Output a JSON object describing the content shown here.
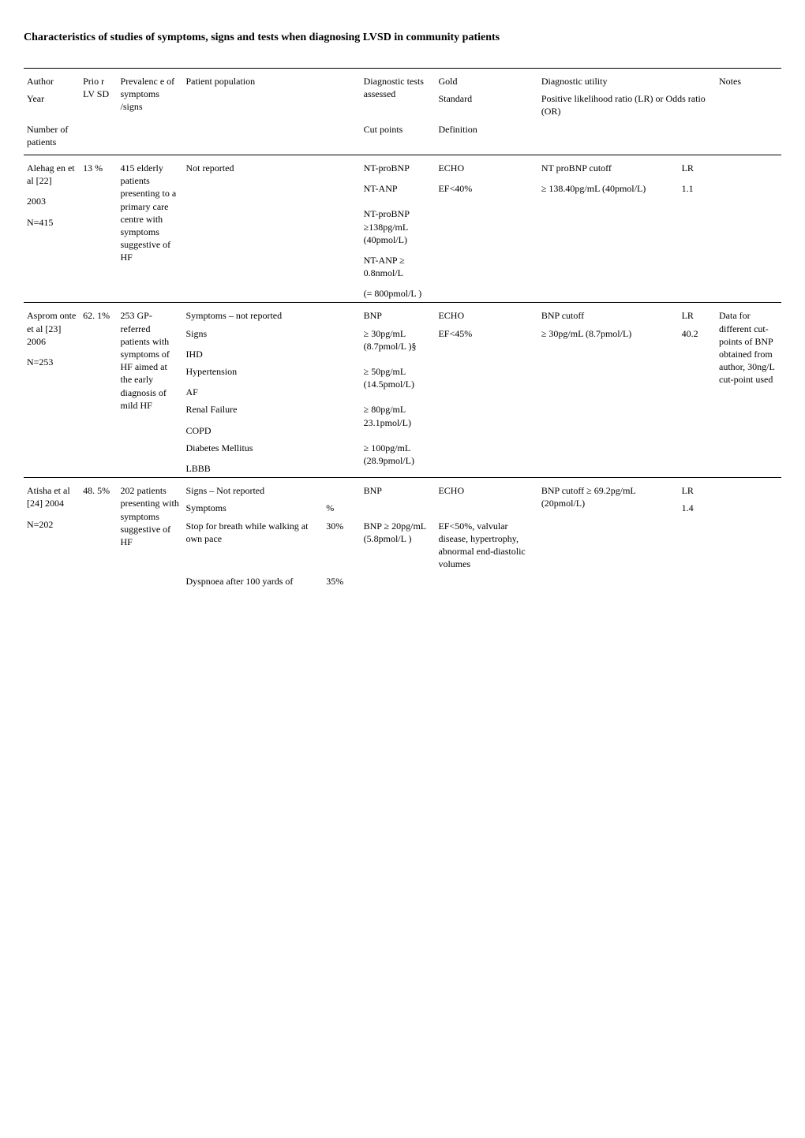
{
  "title": "Characteristics of studies of symptoms, signs and tests when diagnosing LVSD in community patients",
  "header": {
    "author": "Author",
    "year": "Year",
    "number": "Number of patients",
    "prior": "Prio r LV SD",
    "prevalence": "Prevalenc e of symptoms /signs",
    "patient_population": "Patient population",
    "diagnostic_tests": "Diagnostic tests assessed",
    "cut_points": "Cut points",
    "gold": "Gold",
    "standard": "Standard",
    "definition": "Definition",
    "diagnostic_utility": "Diagnostic utility",
    "plr": "Positive likelihood ratio (LR) or Odds ratio (OR)",
    "notes": "Notes"
  },
  "study1": {
    "author": "Alehag en et al [22]",
    "year": "2003",
    "n": "N=415",
    "prior": "13 %",
    "prev1": "415 elderly patients presenting to a primary care centre with symptoms suggestive of HF",
    "pop": "Not reported",
    "diag1": "NT-proBNP",
    "diag2": "NT-ANP",
    "diag3": "NT-proBNP ≥138pg/mL (40pmol/L)",
    "diag4": "NT-ANP ≥ 0.8nmol/L",
    "diag5": "(= 800pmol/L )",
    "gold1": "ECHO",
    "gold2": "EF<40%",
    "util1": "NT proBNP cutoff",
    "util2": "≥ 138.40pg/mL (40pmol/L)",
    "lr1": "LR",
    "lr2": "1.1"
  },
  "study2": {
    "author": "Asprom onte et al [23] 2006",
    "n": "N=253",
    "prior": "62. 1%",
    "prev1": "253 GP-referred patients with symptoms of HF aimed at the early diagnosis of mild HF",
    "pop1": "Symptoms – not reported",
    "pop2": "Signs",
    "pop3": "IHD",
    "pop4": "Hypertension",
    "pop5": "AF",
    "pop6": "Renal Failure",
    "pop7": "COPD",
    "pop8": "Diabetes Mellitus",
    "pop9": "LBBB",
    "diag1": "BNP",
    "diag2": "≥ 30pg/mL (8.7pmol/L )§",
    "diag3": "≥ 50pg/mL (14.5pmol/L)",
    "diag4": "≥ 80pg/mL 23.1pmol/L)",
    "diag5": "≥ 100pg/mL (28.9pmol/L)",
    "gold1": "ECHO",
    "gold2": "EF<45%",
    "util1": "BNP cutoff",
    "util2": "≥ 30pg/mL (8.7pmol/L)",
    "lr1": "LR",
    "lr2": "40.2",
    "notes": "Data for different cut-points of BNP obtained from author, 30ng/L cut-point used"
  },
  "study3": {
    "author": "Atisha et al [24] 2004",
    "n": "N=202",
    "prior": "48. 5%",
    "prev": "202 patients presenting with symptoms suggestive of HF",
    "pop1": "Signs – Not reported",
    "pop2": "Symptoms",
    "pop2pct": "%",
    "pop3": "Stop for breath while walking at own pace",
    "pop3pct": "30%",
    "pop4": "Dyspnoea after 100 yards of",
    "pop4pct": "35%",
    "diag1": "BNP",
    "diag2": "BNP ≥ 20pg/mL (5.8pmol/L )",
    "gold1": "ECHO",
    "gold2": "EF<50%, valvular disease, hypertrophy, abnormal end-diastolic volumes",
    "util1": "BNP cutoff ≥ 69.2pg/mL (20pmol/L)",
    "lr1": "LR",
    "lr2": "1.4"
  }
}
